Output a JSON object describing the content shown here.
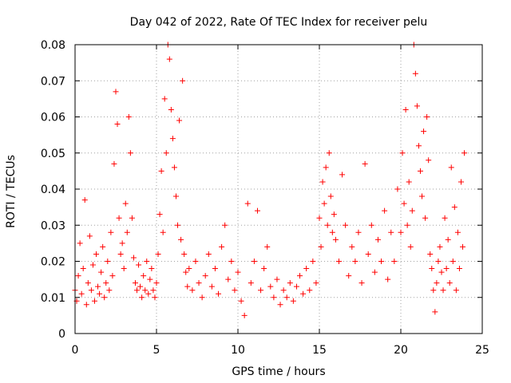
{
  "chart_data": {
    "type": "scatter",
    "title": "Day 042 of 2022, Rate Of TEC Index for receiver pelu",
    "xlabel": "GPS time / hours",
    "ylabel": "ROTI / TECUs",
    "xlim": [
      0,
      25
    ],
    "ylim": [
      0,
      0.08
    ],
    "xticks": [
      0,
      5,
      10,
      15,
      20,
      25
    ],
    "yticks": [
      0,
      0.01,
      0.02,
      0.03,
      0.04,
      0.05,
      0.06,
      0.07,
      0.08
    ],
    "xtick_labels": [
      "0",
      "5",
      "10",
      "15",
      "20",
      "25"
    ],
    "ytick_labels": [
      "0",
      "0.01",
      "0.02",
      "0.03",
      "0.04",
      "0.05",
      "0.06",
      "0.07",
      "0.08"
    ],
    "grid": true,
    "legend": "none",
    "marker": "+",
    "color": "#ff0000",
    "series": [
      {
        "points": [
          [
            0.0,
            0.012
          ],
          [
            0.1,
            0.009
          ],
          [
            0.2,
            0.016
          ],
          [
            0.3,
            0.025
          ],
          [
            0.4,
            0.011
          ],
          [
            0.5,
            0.018
          ],
          [
            0.6,
            0.037
          ],
          [
            0.7,
            0.008
          ],
          [
            0.8,
            0.014
          ],
          [
            0.9,
            0.027
          ],
          [
            1.0,
            0.012
          ],
          [
            1.1,
            0.019
          ],
          [
            1.2,
            0.009
          ],
          [
            1.3,
            0.022
          ],
          [
            1.4,
            0.013
          ],
          [
            1.5,
            0.011
          ],
          [
            1.6,
            0.017
          ],
          [
            1.7,
            0.024
          ],
          [
            1.8,
            0.01
          ],
          [
            1.9,
            0.014
          ],
          [
            2.0,
            0.02
          ],
          [
            2.1,
            0.012
          ],
          [
            2.2,
            0.028
          ],
          [
            2.3,
            0.016
          ],
          [
            2.4,
            0.047
          ],
          [
            2.5,
            0.067
          ],
          [
            2.6,
            0.058
          ],
          [
            2.7,
            0.032
          ],
          [
            2.8,
            0.022
          ],
          [
            2.9,
            0.025
          ],
          [
            3.0,
            0.018
          ],
          [
            3.1,
            0.036
          ],
          [
            3.2,
            0.028
          ],
          [
            3.3,
            0.06
          ],
          [
            3.4,
            0.05
          ],
          [
            3.5,
            0.032
          ],
          [
            3.6,
            0.021
          ],
          [
            3.7,
            0.014
          ],
          [
            3.8,
            0.012
          ],
          [
            3.9,
            0.019
          ],
          [
            4.0,
            0.013
          ],
          [
            4.1,
            0.01
          ],
          [
            4.2,
            0.016
          ],
          [
            4.3,
            0.012
          ],
          [
            4.4,
            0.02
          ],
          [
            4.5,
            0.011
          ],
          [
            4.6,
            0.015
          ],
          [
            4.7,
            0.018
          ],
          [
            4.8,
            0.012
          ],
          [
            4.9,
            0.01
          ],
          [
            5.0,
            0.014
          ],
          [
            5.1,
            0.022
          ],
          [
            5.2,
            0.033
          ],
          [
            5.3,
            0.045
          ],
          [
            5.4,
            0.028
          ],
          [
            5.5,
            0.065
          ],
          [
            5.6,
            0.05
          ],
          [
            5.7,
            0.08
          ],
          [
            5.8,
            0.076
          ],
          [
            5.9,
            0.062
          ],
          [
            6.0,
            0.054
          ],
          [
            6.1,
            0.046
          ],
          [
            6.2,
            0.038
          ],
          [
            6.3,
            0.03
          ],
          [
            6.4,
            0.059
          ],
          [
            6.5,
            0.026
          ],
          [
            6.6,
            0.07
          ],
          [
            6.7,
            0.022
          ],
          [
            6.8,
            0.017
          ],
          [
            6.9,
            0.013
          ],
          [
            7.0,
            0.018
          ],
          [
            7.2,
            0.012
          ],
          [
            7.4,
            0.02
          ],
          [
            7.6,
            0.014
          ],
          [
            7.8,
            0.01
          ],
          [
            8.0,
            0.016
          ],
          [
            8.2,
            0.022
          ],
          [
            8.4,
            0.013
          ],
          [
            8.6,
            0.018
          ],
          [
            8.8,
            0.011
          ],
          [
            9.0,
            0.024
          ],
          [
            9.2,
            0.03
          ],
          [
            9.4,
            0.015
          ],
          [
            9.6,
            0.02
          ],
          [
            9.8,
            0.012
          ],
          [
            10.0,
            0.017
          ],
          [
            10.2,
            0.009
          ],
          [
            10.4,
            0.005
          ],
          [
            10.6,
            0.036
          ],
          [
            10.8,
            0.014
          ],
          [
            11.0,
            0.02
          ],
          [
            11.2,
            0.034
          ],
          [
            11.4,
            0.012
          ],
          [
            11.6,
            0.018
          ],
          [
            11.8,
            0.024
          ],
          [
            12.0,
            0.013
          ],
          [
            12.2,
            0.01
          ],
          [
            12.4,
            0.015
          ],
          [
            12.6,
            0.008
          ],
          [
            12.8,
            0.012
          ],
          [
            13.0,
            0.01
          ],
          [
            13.2,
            0.014
          ],
          [
            13.4,
            0.009
          ],
          [
            13.6,
            0.013
          ],
          [
            13.8,
            0.016
          ],
          [
            14.0,
            0.011
          ],
          [
            14.2,
            0.018
          ],
          [
            14.4,
            0.012
          ],
          [
            14.6,
            0.02
          ],
          [
            14.8,
            0.014
          ],
          [
            15.0,
            0.032
          ],
          [
            15.1,
            0.024
          ],
          [
            15.2,
            0.042
          ],
          [
            15.3,
            0.036
          ],
          [
            15.4,
            0.046
          ],
          [
            15.5,
            0.03
          ],
          [
            15.6,
            0.05
          ],
          [
            15.7,
            0.038
          ],
          [
            15.8,
            0.028
          ],
          [
            15.9,
            0.033
          ],
          [
            16.0,
            0.026
          ],
          [
            16.2,
            0.02
          ],
          [
            16.4,
            0.044
          ],
          [
            16.6,
            0.03
          ],
          [
            16.8,
            0.016
          ],
          [
            17.0,
            0.024
          ],
          [
            17.2,
            0.02
          ],
          [
            17.4,
            0.028
          ],
          [
            17.6,
            0.014
          ],
          [
            17.8,
            0.047
          ],
          [
            18.0,
            0.022
          ],
          [
            18.2,
            0.03
          ],
          [
            18.4,
            0.017
          ],
          [
            18.6,
            0.026
          ],
          [
            18.8,
            0.02
          ],
          [
            19.0,
            0.034
          ],
          [
            19.2,
            0.015
          ],
          [
            19.4,
            0.028
          ],
          [
            19.6,
            0.02
          ],
          [
            19.8,
            0.04
          ],
          [
            20.0,
            0.028
          ],
          [
            20.1,
            0.05
          ],
          [
            20.2,
            0.036
          ],
          [
            20.3,
            0.062
          ],
          [
            20.4,
            0.03
          ],
          [
            20.5,
            0.042
          ],
          [
            20.6,
            0.024
          ],
          [
            20.7,
            0.034
          ],
          [
            20.8,
            0.08
          ],
          [
            20.9,
            0.072
          ],
          [
            21.0,
            0.063
          ],
          [
            21.1,
            0.052
          ],
          [
            21.2,
            0.045
          ],
          [
            21.3,
            0.038
          ],
          [
            21.4,
            0.056
          ],
          [
            21.5,
            0.032
          ],
          [
            21.6,
            0.06
          ],
          [
            21.7,
            0.048
          ],
          [
            21.8,
            0.022
          ],
          [
            21.9,
            0.018
          ],
          [
            22.0,
            0.012
          ],
          [
            22.1,
            0.006
          ],
          [
            22.2,
            0.014
          ],
          [
            22.3,
            0.02
          ],
          [
            22.4,
            0.024
          ],
          [
            22.5,
            0.017
          ],
          [
            22.6,
            0.012
          ],
          [
            22.7,
            0.032
          ],
          [
            22.8,
            0.018
          ],
          [
            22.9,
            0.026
          ],
          [
            23.0,
            0.014
          ],
          [
            23.1,
            0.046
          ],
          [
            23.2,
            0.02
          ],
          [
            23.3,
            0.035
          ],
          [
            23.4,
            0.012
          ],
          [
            23.5,
            0.028
          ],
          [
            23.6,
            0.018
          ],
          [
            23.7,
            0.042
          ],
          [
            23.8,
            0.024
          ],
          [
            23.9,
            0.05
          ]
        ]
      }
    ]
  }
}
